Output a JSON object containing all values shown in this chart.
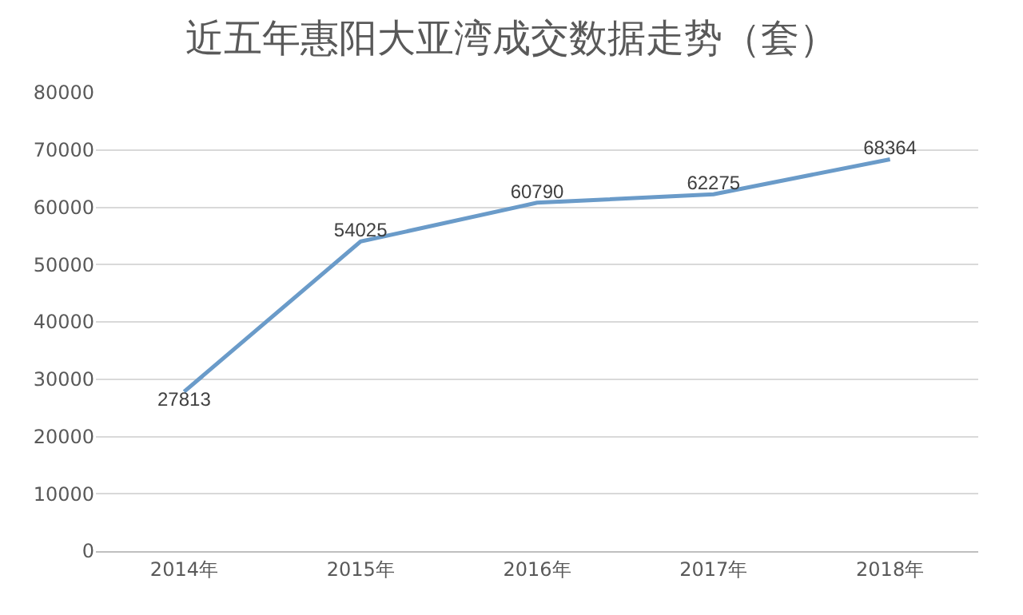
{
  "chart_data": {
    "type": "line",
    "title": "近五年惠阳大亚湾成交数据走势（套）",
    "categories": [
      "2014年",
      "2015年",
      "2016年",
      "2017年",
      "2018年"
    ],
    "series": [
      {
        "color": "#6a9bc9",
        "values": [
          27813,
          54025,
          60790,
          62275,
          68364
        ]
      }
    ],
    "ylim": [
      0,
      80000
    ],
    "yticks": [
      0,
      10000,
      20000,
      30000,
      40000,
      50000,
      60000,
      70000,
      80000
    ],
    "grid": "y",
    "legend": false,
    "marker": "none",
    "line_style": "solid",
    "data_labels": true
  }
}
